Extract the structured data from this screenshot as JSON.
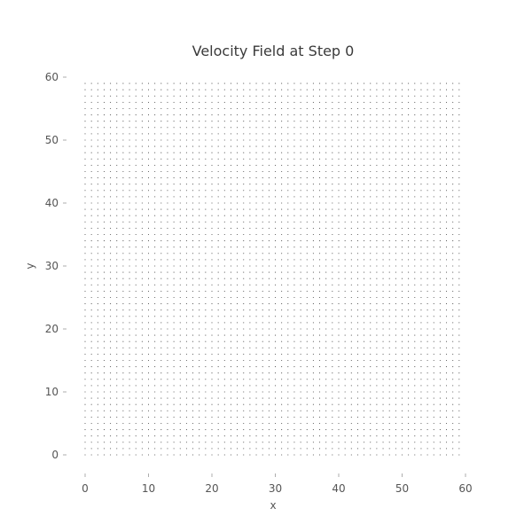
{
  "chart_data": {
    "type": "scatter",
    "subtype": "quiver",
    "title": "Velocity Field at Step 0",
    "xlabel": "x",
    "ylabel": "y",
    "xlim": [
      -2,
      62
    ],
    "ylim": [
      -3,
      62
    ],
    "xticks": [
      0,
      10,
      20,
      30,
      40,
      50,
      60
    ],
    "yticks": [
      0,
      10,
      20,
      30,
      40,
      50,
      60
    ],
    "grid": false,
    "legend": "none",
    "series": [
      {
        "grid_points": {
          "x_start": 0,
          "x_end": 59,
          "x_step": 1,
          "y_start": 0,
          "y_end": 59,
          "y_step": 1
        },
        "u": 0,
        "v": 0
      }
    ],
    "colors": {
      "points": "#4a4a4a",
      "text": "#555555",
      "title": "#3a3a3a"
    }
  }
}
